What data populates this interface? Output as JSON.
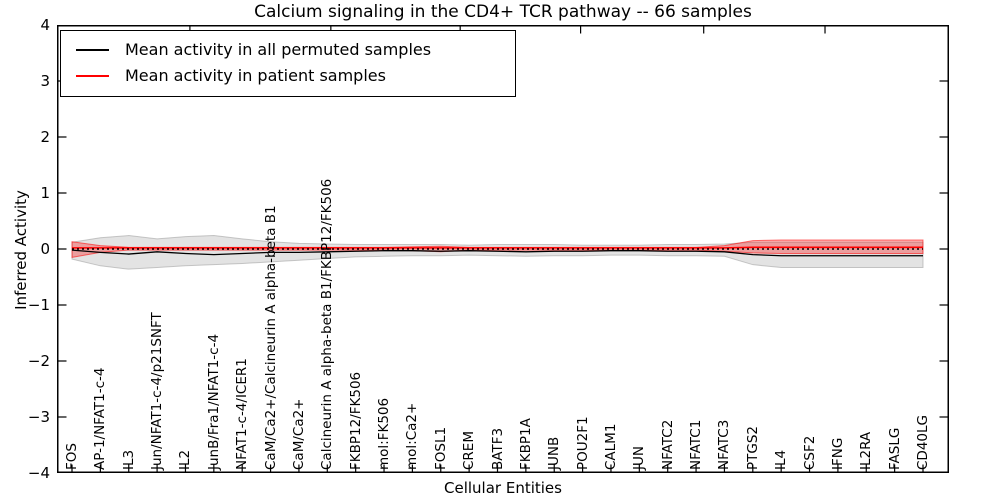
{
  "title": "Calcium signaling in the CD4+ TCR pathway -- 66 samples",
  "axes": {
    "xlabel": "Cellular Entities",
    "ylabel": "Inferred Activity",
    "yticks": [
      {
        "value": 4,
        "label": "4"
      },
      {
        "value": 3,
        "label": "3"
      },
      {
        "value": 2,
        "label": "2"
      },
      {
        "value": 1,
        "label": "1"
      },
      {
        "value": 0,
        "label": "0"
      },
      {
        "value": -1,
        "label": "−1"
      },
      {
        "value": -2,
        "label": "−2"
      },
      {
        "value": -3,
        "label": "−3"
      },
      {
        "value": -4,
        "label": "−4"
      }
    ]
  },
  "legend": {
    "items": [
      {
        "label": "Mean activity in all permuted samples",
        "color": "#000000"
      },
      {
        "label": "Mean activity in patient samples",
        "color": "#ff0000"
      }
    ]
  },
  "colors": {
    "permuted_line": "#000000",
    "patient_line": "#ff0000",
    "permuted_band": "#999999",
    "patient_band": "#ff0000",
    "zero_line": "#000000",
    "background": "#ffffff"
  },
  "chart_data": {
    "type": "line",
    "title": "Calcium signaling in the CD4+ TCR pathway -- 66 samples",
    "xlabel": "Cellular Entities",
    "ylabel": "Inferred Activity",
    "ylim": [
      -4,
      4
    ],
    "grid": false,
    "legend_position": "upper left",
    "categories": [
      "FOS",
      "AP-1/NFAT1-c-4",
      "IL3",
      "Jun/NFAT1-c-4/p21SNFT",
      "IL2",
      "JunB/Fra1/NFAT1-c-4",
      "NFAT1-c-4/ICER1",
      "CaM/Ca2+/Calcineurin A alpha-beta B1",
      "CaM/Ca2+",
      "Calcineurin A alpha-beta B1/FKBP12/FK506",
      "FKBP12/FK506",
      "mol:FK506",
      "mol:Ca2+",
      "FOSL1",
      "CREM",
      "BATF3",
      "FKBP1A",
      "JUNB",
      "POU2F1",
      "CALM1",
      "JUN",
      "NFATC2",
      "NFATC1",
      "NFATC3",
      "PTGS2",
      "IL4",
      "CSF2",
      "IFNG",
      "IL2RA",
      "FASLG",
      "CD40LG"
    ],
    "series": [
      {
        "name": "Mean activity in all permuted samples",
        "color": "#000000",
        "values": [
          -0.02,
          -0.06,
          -0.09,
          -0.05,
          -0.08,
          -0.1,
          -0.08,
          -0.06,
          -0.06,
          -0.05,
          -0.04,
          -0.03,
          -0.03,
          -0.04,
          -0.03,
          -0.04,
          -0.05,
          -0.04,
          -0.04,
          -0.03,
          -0.03,
          -0.04,
          -0.04,
          -0.05,
          -0.1,
          -0.12,
          -0.12,
          -0.12,
          -0.12,
          -0.12,
          -0.12
        ]
      },
      {
        "name": "Mean activity in patient samples",
        "color": "#ff0000",
        "values": [
          0.02,
          0.02,
          0.02,
          0.02,
          0.02,
          0.02,
          0.02,
          0.02,
          0.02,
          0.02,
          0.02,
          0.02,
          0.02,
          0.02,
          0.02,
          0.02,
          0.02,
          0.02,
          0.02,
          0.02,
          0.02,
          0.02,
          0.02,
          0.02,
          0.03,
          0.03,
          0.03,
          0.03,
          0.03,
          0.03,
          0.03
        ]
      }
    ],
    "bands": [
      {
        "name": "permuted-std-band",
        "color": "#999999",
        "opacity": 0.28,
        "upper": [
          0.12,
          0.2,
          0.24,
          0.18,
          0.22,
          0.24,
          0.18,
          0.13,
          0.1,
          0.09,
          0.08,
          0.08,
          0.08,
          0.08,
          0.07,
          0.08,
          0.08,
          0.08,
          0.07,
          0.07,
          0.07,
          0.08,
          0.08,
          0.09,
          0.12,
          0.12,
          0.12,
          0.12,
          0.12,
          0.12,
          0.12
        ],
        "lower": [
          -0.18,
          -0.3,
          -0.36,
          -0.33,
          -0.3,
          -0.28,
          -0.26,
          -0.23,
          -0.2,
          -0.17,
          -0.14,
          -0.13,
          -0.12,
          -0.12,
          -0.11,
          -0.12,
          -0.13,
          -0.12,
          -0.12,
          -0.11,
          -0.11,
          -0.12,
          -0.12,
          -0.13,
          -0.28,
          -0.33,
          -0.33,
          -0.33,
          -0.33,
          -0.33,
          -0.33
        ]
      },
      {
        "name": "patient-std-band",
        "color": "#ff0000",
        "opacity": 0.3,
        "upper": [
          0.13,
          0.06,
          0.03,
          0.03,
          0.03,
          0.03,
          0.03,
          0.03,
          0.03,
          0.03,
          0.03,
          0.03,
          0.04,
          0.05,
          0.03,
          0.03,
          0.03,
          0.03,
          0.03,
          0.03,
          0.03,
          0.03,
          0.03,
          0.06,
          0.15,
          0.16,
          0.16,
          0.16,
          0.16,
          0.16,
          0.16
        ],
        "lower": [
          -0.15,
          -0.06,
          -0.02,
          -0.02,
          -0.02,
          -0.02,
          -0.02,
          -0.02,
          -0.02,
          -0.02,
          -0.02,
          -0.02,
          -0.03,
          -0.05,
          -0.02,
          -0.02,
          -0.02,
          -0.02,
          -0.02,
          -0.02,
          -0.02,
          -0.02,
          -0.02,
          -0.04,
          -0.07,
          -0.08,
          -0.08,
          -0.08,
          -0.08,
          -0.08,
          -0.08
        ]
      }
    ],
    "zero_reference_line": 0
  }
}
